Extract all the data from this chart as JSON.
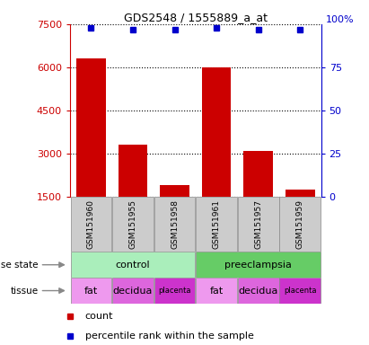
{
  "title": "GDS2548 / 1555889_a_at",
  "samples": [
    "GSM151960",
    "GSM151955",
    "GSM151958",
    "GSM151961",
    "GSM151957",
    "GSM151959"
  ],
  "counts": [
    6300,
    3300,
    1900,
    6000,
    3100,
    1750
  ],
  "percentile_ranks": [
    98,
    97,
    97,
    98,
    97,
    97
  ],
  "ylim_left": [
    1500,
    7500
  ],
  "ylim_right": [
    0,
    100
  ],
  "yticks_left": [
    1500,
    3000,
    4500,
    6000,
    7500
  ],
  "yticks_right": [
    0,
    25,
    50,
    75,
    100
  ],
  "bar_color": "#cc0000",
  "dot_color": "#0000cc",
  "tissue_colors": [
    "#ee99ee",
    "#dd66dd",
    "#cc33cc",
    "#ee99ee",
    "#dd66dd",
    "#cc33cc"
  ],
  "tissue_labels": [
    "fat",
    "decidua",
    "placenta",
    "fat",
    "decidua",
    "placenta"
  ],
  "disease_labels": [
    "control",
    "preeclampsia"
  ],
  "disease_colors": [
    "#aaeebb",
    "#66cc66"
  ],
  "background_color": "#ffffff",
  "left_axis_color": "#cc0000",
  "right_axis_color": "#0000cc",
  "sample_box_color": "#cccccc"
}
